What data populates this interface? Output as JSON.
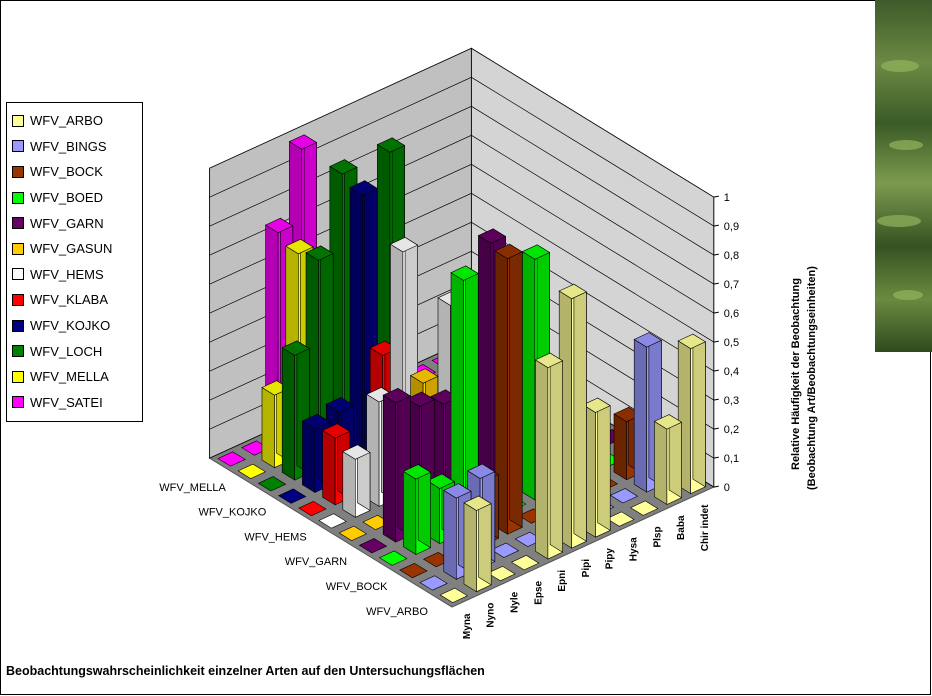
{
  "chart_data": {
    "type": "bar",
    "subtype": "3d-column",
    "title": "Beobachtungswahrscheinlichkeit einzelner Arten auf den Untersuchungsflächen",
    "zlabel": [
      "Relative Häufigkeit der Beobachtung",
      "(Beobachtung Art/Beobachtungseinheiten)"
    ],
    "zlim": [
      0,
      1
    ],
    "zticks": [
      "0",
      "0,1",
      "0,2",
      "0,3",
      "0,4",
      "0,5",
      "0,6",
      "0,7",
      "0,8",
      "0,9",
      "1"
    ],
    "categories": [
      "Myna",
      "Nyno",
      "Nyle",
      "Epse",
      "Epni",
      "Pipi",
      "Pipy",
      "Hysa",
      "Plsp",
      "Baba",
      "Chir indet"
    ],
    "depth_axis_labels": [
      "WFV_ARBO",
      "WFV_BOCK",
      "WFV_GARN",
      "WFV_HEMS",
      "WFV_KOJKO",
      "WFV_MELLA"
    ],
    "legend_position": "left",
    "grid": true,
    "series": [
      {
        "name": "WFV_ARBO",
        "color": "#ffff99",
        "values": [
          0,
          0.28,
          0,
          0,
          0.66,
          0.86,
          0.43,
          0,
          0,
          0.26,
          0.5
        ]
      },
      {
        "name": "WFV_BINGS",
        "color": "#9999ff",
        "values": [
          0,
          0.28,
          0.31,
          0,
          0,
          0,
          0,
          0,
          0,
          0.5,
          0
        ]
      },
      {
        "name": "WFV_BOCK",
        "color": "#993300",
        "values": [
          0,
          0,
          0,
          0.22,
          0.95,
          0,
          0,
          0,
          0,
          0.2,
          0
        ]
      },
      {
        "name": "WFV_BOED",
        "color": "#00ff00",
        "values": [
          0,
          0.26,
          0.19,
          0.87,
          0,
          0,
          0.83,
          0,
          0,
          0,
          0
        ]
      },
      {
        "name": "WFV_GARN",
        "color": "#660066",
        "values": [
          0,
          0.48,
          0.43,
          0.4,
          0,
          0.88,
          0,
          0,
          0,
          0,
          0
        ]
      },
      {
        "name": "WFV_GASUN",
        "color": "#ffcc00",
        "values": [
          0,
          0,
          0,
          0.43,
          0.26,
          0,
          0,
          0,
          0,
          0,
          0
        ]
      },
      {
        "name": "WFV_HEMS",
        "color": "#ffffff",
        "values": [
          0,
          0.2,
          0.36,
          0.84,
          0,
          0.58,
          0,
          0,
          0,
          0,
          0
        ]
      },
      {
        "name": "WFV_KLABA",
        "color": "#ff0000",
        "values": [
          0,
          0.23,
          0,
          0.44,
          0,
          0,
          0,
          0,
          0,
          0,
          0
        ]
      },
      {
        "name": "WFV_KOJKO",
        "color": "#000080",
        "values": [
          0,
          0.22,
          0.24,
          0.95,
          0,
          0,
          0,
          0,
          0,
          0,
          0
        ]
      },
      {
        "name": "WFV_LOCH",
        "color": "#008000",
        "values": [
          0,
          0.43,
          0.72,
          0.98,
          0,
          0.98,
          0,
          0,
          0,
          0,
          0
        ]
      },
      {
        "name": "WFV_MELLA",
        "color": "#ffff00",
        "values": [
          0,
          0.25,
          0.7,
          0,
          0,
          0,
          0,
          0,
          0,
          0,
          0
        ]
      },
      {
        "name": "WFV_SATEI",
        "color": "#ff00ff",
        "values": [
          0,
          0,
          0.73,
          0.98,
          0.15,
          0,
          0,
          0,
          0,
          0,
          0
        ]
      }
    ]
  }
}
